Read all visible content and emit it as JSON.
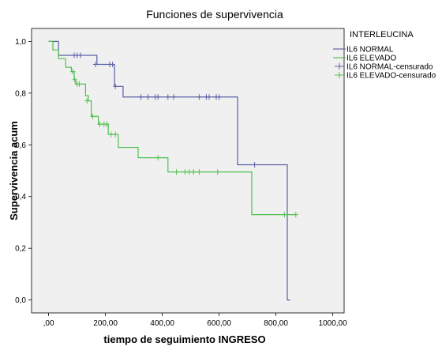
{
  "chart_data": {
    "type": "line",
    "subtype": "kaplan-meier",
    "title": "Funciones de supervivencia",
    "xlabel": "tiempo de seguimiento INGRESO",
    "ylabel": "Supervivencia acum",
    "xlim": [
      -60,
      1040
    ],
    "ylim": [
      -0.05,
      1.05
    ],
    "xticks": [
      0,
      200,
      400,
      600,
      800,
      1000
    ],
    "xtick_labels": [
      ",00",
      "200,00",
      "400,00",
      "600,00",
      "800,00",
      "1000,00"
    ],
    "yticks": [
      0,
      0.2,
      0.4,
      0.6,
      0.8,
      1.0
    ],
    "ytick_labels": [
      "0,0",
      "0,2",
      "0,4",
      "0,6",
      "0,8",
      "1,0"
    ],
    "grid": false,
    "legend_title": "INTERLEUCINA",
    "legend_position": "right",
    "series": [
      {
        "name": "IL6 NORMAL",
        "color": "#5b5fa8",
        "steps": [
          [
            0,
            1.0
          ],
          [
            35,
            0.946
          ],
          [
            170,
            0.911
          ],
          [
            232,
            0.826
          ],
          [
            262,
            0.785
          ],
          [
            665,
            0.523
          ],
          [
            840,
            0.0
          ]
        ],
        "end_x": 850,
        "censored": [
          {
            "x": 90,
            "y": 0.946
          },
          {
            "x": 100,
            "y": 0.946
          },
          {
            "x": 112,
            "y": 0.946
          },
          {
            "x": 165,
            "y": 0.911
          },
          {
            "x": 215,
            "y": 0.911
          },
          {
            "x": 225,
            "y": 0.911
          },
          {
            "x": 235,
            "y": 0.826
          },
          {
            "x": 325,
            "y": 0.785
          },
          {
            "x": 350,
            "y": 0.785
          },
          {
            "x": 375,
            "y": 0.785
          },
          {
            "x": 385,
            "y": 0.785
          },
          {
            "x": 420,
            "y": 0.785
          },
          {
            "x": 440,
            "y": 0.785
          },
          {
            "x": 530,
            "y": 0.785
          },
          {
            "x": 555,
            "y": 0.785
          },
          {
            "x": 565,
            "y": 0.785
          },
          {
            "x": 590,
            "y": 0.785
          },
          {
            "x": 600,
            "y": 0.785
          },
          {
            "x": 725,
            "y": 0.523
          }
        ]
      },
      {
        "name": "IL6 ELEVADO",
        "color": "#4fc04f",
        "steps": [
          [
            0,
            1.0
          ],
          [
            15,
            0.967
          ],
          [
            35,
            0.933
          ],
          [
            60,
            0.9
          ],
          [
            80,
            0.883
          ],
          [
            90,
            0.852
          ],
          [
            95,
            0.835
          ],
          [
            130,
            0.79
          ],
          [
            140,
            0.77
          ],
          [
            150,
            0.71
          ],
          [
            175,
            0.68
          ],
          [
            210,
            0.64
          ],
          [
            245,
            0.59
          ],
          [
            315,
            0.55
          ],
          [
            420,
            0.495
          ],
          [
            715,
            0.33
          ]
        ],
        "end_x": 870,
        "censored": [
          {
            "x": 85,
            "y": 0.883
          },
          {
            "x": 92,
            "y": 0.852
          },
          {
            "x": 100,
            "y": 0.835
          },
          {
            "x": 108,
            "y": 0.835
          },
          {
            "x": 135,
            "y": 0.77
          },
          {
            "x": 155,
            "y": 0.71
          },
          {
            "x": 180,
            "y": 0.68
          },
          {
            "x": 195,
            "y": 0.68
          },
          {
            "x": 205,
            "y": 0.68
          },
          {
            "x": 220,
            "y": 0.64
          },
          {
            "x": 235,
            "y": 0.64
          },
          {
            "x": 385,
            "y": 0.55
          },
          {
            "x": 450,
            "y": 0.495
          },
          {
            "x": 480,
            "y": 0.495
          },
          {
            "x": 495,
            "y": 0.495
          },
          {
            "x": 510,
            "y": 0.495
          },
          {
            "x": 530,
            "y": 0.495
          },
          {
            "x": 595,
            "y": 0.495
          },
          {
            "x": 830,
            "y": 0.33
          },
          {
            "x": 870,
            "y": 0.33
          }
        ]
      }
    ],
    "legend_entries": [
      {
        "label": "IL6 NORMAL",
        "color": "#5b5fa8",
        "kind": "line"
      },
      {
        "label": "IL6 ELEVADO",
        "color": "#4fc04f",
        "kind": "line"
      },
      {
        "label": "IL6 NORMAL-censurado",
        "color": "#5b5fa8",
        "kind": "censor"
      },
      {
        "label": "IL6 ELEVADO-censurado",
        "color": "#4fc04f",
        "kind": "censor"
      }
    ],
    "plot_background": "#f0f0f0"
  }
}
